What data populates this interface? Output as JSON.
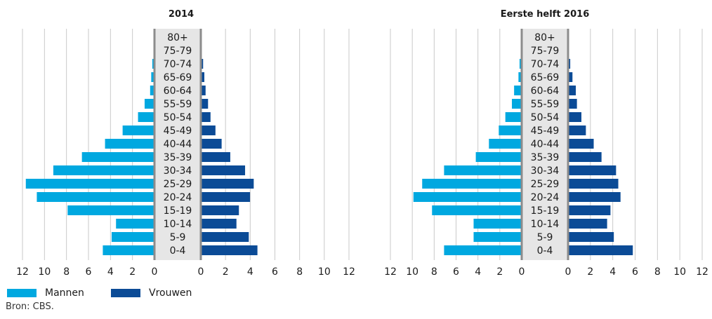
{
  "chart_data": [
    {
      "type": "bar",
      "orientation": "horizontal-pyramid",
      "title": "2014",
      "categories": [
        "0-4",
        "5-9",
        "10-14",
        "15-19",
        "20-24",
        "25-29",
        "30-34",
        "35-39",
        "40-44",
        "45-49",
        "50-54",
        "55-59",
        "60-64",
        "65-69",
        "70-74",
        "75-79",
        "80+"
      ],
      "series": [
        {
          "name": "Mannen",
          "values": [
            4.6,
            3.8,
            3.4,
            7.8,
            10.6,
            11.6,
            9.1,
            6.5,
            4.4,
            2.8,
            1.4,
            0.8,
            0.3,
            0.2,
            0.1,
            0,
            0
          ]
        },
        {
          "name": "Vrouwen",
          "values": [
            4.5,
            3.8,
            2.8,
            3.0,
            3.9,
            4.2,
            3.5,
            2.3,
            1.6,
            1.1,
            0.7,
            0.5,
            0.3,
            0.2,
            0.1,
            0,
            0
          ]
        }
      ],
      "xticks_left": [
        "12",
        "10",
        "8",
        "6",
        "4",
        "2",
        "0"
      ],
      "xticks_right": [
        "0",
        "2",
        "4",
        "6",
        "8",
        "10",
        "12"
      ],
      "xunit": "%",
      "xlim": [
        0,
        12
      ]
    },
    {
      "type": "bar",
      "orientation": "horizontal-pyramid",
      "title": "Eerste helft 2016",
      "categories": [
        "0-4",
        "5-9",
        "10-14",
        "15-19",
        "20-24",
        "25-29",
        "30-34",
        "35-39",
        "40-44",
        "45-49",
        "50-54",
        "55-59",
        "60-64",
        "65-69",
        "70-74",
        "75-79",
        "80+"
      ],
      "series": [
        {
          "name": "Mannen",
          "values": [
            7.0,
            4.3,
            4.3,
            8.1,
            9.8,
            9.0,
            7.0,
            4.1,
            2.9,
            2.0,
            1.4,
            0.8,
            0.6,
            0.2,
            0.1,
            0,
            0
          ]
        },
        {
          "name": "Vrouwen",
          "values": [
            5.7,
            4.0,
            3.4,
            3.7,
            4.6,
            4.4,
            4.2,
            2.9,
            2.2,
            1.5,
            1.1,
            0.7,
            0.6,
            0.3,
            0.1,
            0,
            0
          ]
        }
      ],
      "xticks_left": [
        "12",
        "10",
        "8",
        "6",
        "4",
        "2",
        "0"
      ],
      "xticks_right": [
        "0",
        "2",
        "4",
        "6",
        "8",
        "10",
        "12"
      ],
      "xunit": "%",
      "xlim": [
        0,
        12
      ]
    }
  ],
  "legend": [
    {
      "label": "Mannen",
      "color": "#00a8e0"
    },
    {
      "label": "Vrouwen",
      "color": "#0b4b96"
    }
  ],
  "source": "Bron: CBS.",
  "colors": {
    "men": "#00a8e0",
    "women": "#0b4b96",
    "label_band": "#e6e6e6",
    "divider": "#8c8c8c",
    "gridline": "#c9c9c9"
  }
}
